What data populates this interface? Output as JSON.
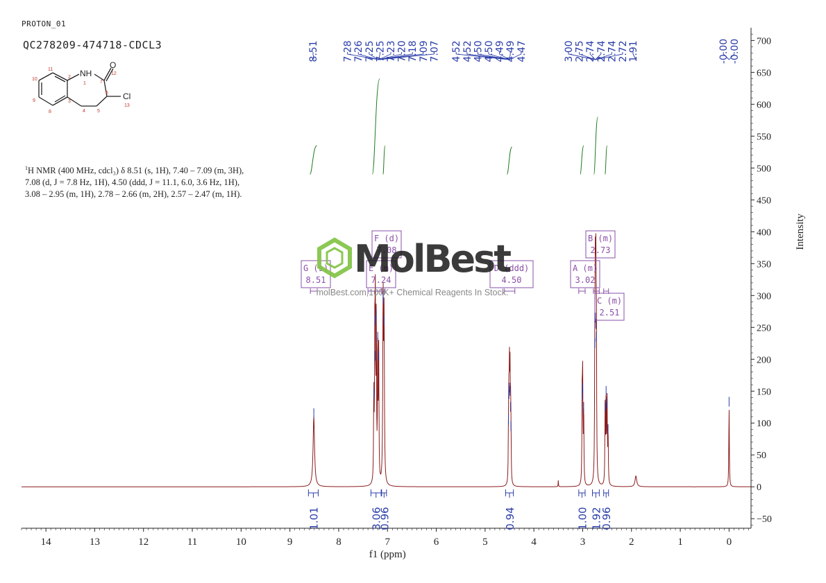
{
  "header": {
    "pulse_program": "PROTON_01",
    "sample_id": "QC278209-474718-CDCL3"
  },
  "nmr_summary": {
    "line1_prefix": "1",
    "line1": "H NMR (400 MHz, cdcl₃) δ 8.51 (s, 1H), 7.40 – 7.09 (m, 3H),",
    "line2": "7.08 (d, J = 7.8 Hz, 1H), 4.50 (ddd, J = 11.1, 6.0, 3.6 Hz, 1H),",
    "line3": "3.08 – 2.95 (m, 1H), 2.78 – 2.66 (m, 2H), 2.57 – 2.47 (m, 1H)."
  },
  "structure": {
    "atoms": [
      "NH",
      "O",
      "Cl"
    ],
    "numbers": [
      "1",
      "2",
      "3",
      "4",
      "5",
      "6",
      "7",
      "8",
      "9",
      "10",
      "11",
      "12",
      "13"
    ]
  },
  "watermark": {
    "brand": "MolBest",
    "tagline": "molBest.com,100K+ Chemical Reagents In Stock."
  },
  "chart_data": {
    "type": "line",
    "title": "",
    "xlabel": "f1 (ppm)",
    "ylabel": "Intensity",
    "xlim": [
      14.5,
      -0.45
    ],
    "ylim": [
      -65,
      720
    ],
    "x_ticks": [
      14,
      13,
      12,
      11,
      10,
      9,
      8,
      7,
      6,
      5,
      4,
      3,
      2,
      1,
      0
    ],
    "y_ticks": [
      -50,
      0,
      50,
      100,
      150,
      200,
      250,
      300,
      350,
      400,
      450,
      500,
      550,
      600,
      650,
      700
    ],
    "baseline": 0,
    "peaks": [
      {
        "ppm": 8.51,
        "height": 110,
        "width": 0.018
      },
      {
        "ppm": 7.28,
        "height": 140,
        "width": 0.006
      },
      {
        "ppm": 7.26,
        "height": 200,
        "width": 0.006
      },
      {
        "ppm": 7.25,
        "height": 255,
        "width": 0.006
      },
      {
        "ppm": 7.23,
        "height": 265,
        "width": 0.006
      },
      {
        "ppm": 7.2,
        "height": 230,
        "width": 0.006
      },
      {
        "ppm": 7.18,
        "height": 200,
        "width": 0.006
      },
      {
        "ppm": 7.09,
        "height": 290,
        "width": 0.008
      },
      {
        "ppm": 7.07,
        "height": 255,
        "width": 0.008
      },
      {
        "ppm": 4.52,
        "height": 100,
        "width": 0.005
      },
      {
        "ppm": 4.51,
        "height": 140,
        "width": 0.005
      },
      {
        "ppm": 4.5,
        "height": 150,
        "width": 0.005
      },
      {
        "ppm": 4.49,
        "height": 145,
        "width": 0.005
      },
      {
        "ppm": 4.48,
        "height": 120,
        "width": 0.005
      },
      {
        "ppm": 4.47,
        "height": 90,
        "width": 0.005
      },
      {
        "ppm": 3.01,
        "height": 140,
        "width": 0.006
      },
      {
        "ppm": 3.0,
        "height": 150,
        "width": 0.006
      },
      {
        "ppm": 2.98,
        "height": 120,
        "width": 0.006
      },
      {
        "ppm": 2.75,
        "height": 220,
        "width": 0.006
      },
      {
        "ppm": 2.74,
        "height": 260,
        "width": 0.006
      },
      {
        "ppm": 2.73,
        "height": 250,
        "width": 0.006
      },
      {
        "ppm": 2.72,
        "height": 230,
        "width": 0.006
      },
      {
        "ppm": 2.54,
        "height": 120,
        "width": 0.006
      },
      {
        "ppm": 2.52,
        "height": 145,
        "width": 0.006
      },
      {
        "ppm": 2.5,
        "height": 125,
        "width": 0.006
      },
      {
        "ppm": 2.48,
        "height": 85,
        "width": 0.006
      },
      {
        "ppm": 3.5,
        "height": 10,
        "width": 0.004
      },
      {
        "ppm": 1.91,
        "height": 17,
        "width": 0.02
      },
      {
        "ppm": 0.0,
        "height": 128,
        "width": 0.006
      }
    ],
    "peak_labels": [
      "8.51",
      "7.28",
      "7.26",
      "7.25",
      "7.25",
      "7.23",
      "7.20",
      "7.18",
      "7.09",
      "7.07",
      "4.52",
      "4.52",
      "4.50",
      "4.50",
      "4.49",
      "4.49",
      "4.47",
      "3.00",
      "2.75",
      "2.74",
      "2.74",
      "2.74",
      "2.72",
      "1.91",
      "-0.00",
      "-0.00"
    ],
    "integrals": [
      {
        "from": 8.62,
        "to": 8.42,
        "value": "1.01",
        "curve_low": 490,
        "curve_high": 535
      },
      {
        "from": 7.34,
        "to": 7.13,
        "value": "3.06",
        "curve_low": 490,
        "curve_high": 640
      },
      {
        "from": 7.12,
        "to": 7.02,
        "value": "0.96",
        "curve_low": 490,
        "curve_high": 535
      },
      {
        "from": 4.58,
        "to": 4.42,
        "value": "0.94",
        "curve_low": 490,
        "curve_high": 533
      },
      {
        "from": 3.08,
        "to": 2.95,
        "value": "1.00",
        "curve_low": 490,
        "curve_high": 535
      },
      {
        "from": 2.8,
        "to": 2.66,
        "value": "1.92",
        "curve_low": 490,
        "curve_high": 580
      },
      {
        "from": 2.57,
        "to": 2.47,
        "value": "0.96",
        "curve_low": 490,
        "curve_high": 535
      }
    ],
    "multiplets": [
      {
        "letter": "A",
        "mult": "(m)",
        "shift": "3.02",
        "ppm": 3.02,
        "range": [
          3.08,
          2.95
        ]
      },
      {
        "letter": "B",
        "mult": "(m)",
        "shift": "2.73",
        "ppm": 2.73,
        "range": [
          2.78,
          2.66
        ]
      },
      {
        "letter": "C",
        "mult": "(m)",
        "shift": "2.51",
        "ppm": 2.51,
        "range": [
          2.57,
          2.47
        ]
      },
      {
        "letter": "D",
        "mult": "(ddd)",
        "shift": "4.50",
        "ppm": 4.5,
        "range": [
          4.61,
          4.39
        ]
      },
      {
        "letter": "E",
        "mult": "(m)",
        "shift": "7.24",
        "ppm": 7.24,
        "range": [
          7.4,
          7.13
        ]
      },
      {
        "letter": "F",
        "mult": "(d)",
        "shift": "7.08",
        "ppm": 7.08,
        "range": [
          7.11,
          7.05
        ]
      },
      {
        "letter": "G",
        "mult": "(s)",
        "shift": "8.51",
        "ppm": 8.51,
        "range": [
          8.58,
          8.44
        ]
      }
    ],
    "colors": {
      "spectrum": "#8b1a1a",
      "peak_marker": "#2a3da8",
      "integral": "#1f7a1f",
      "multiplet_box": "#8a4fa8",
      "axis": "#222222",
      "watermark": "#7fc241"
    }
  }
}
